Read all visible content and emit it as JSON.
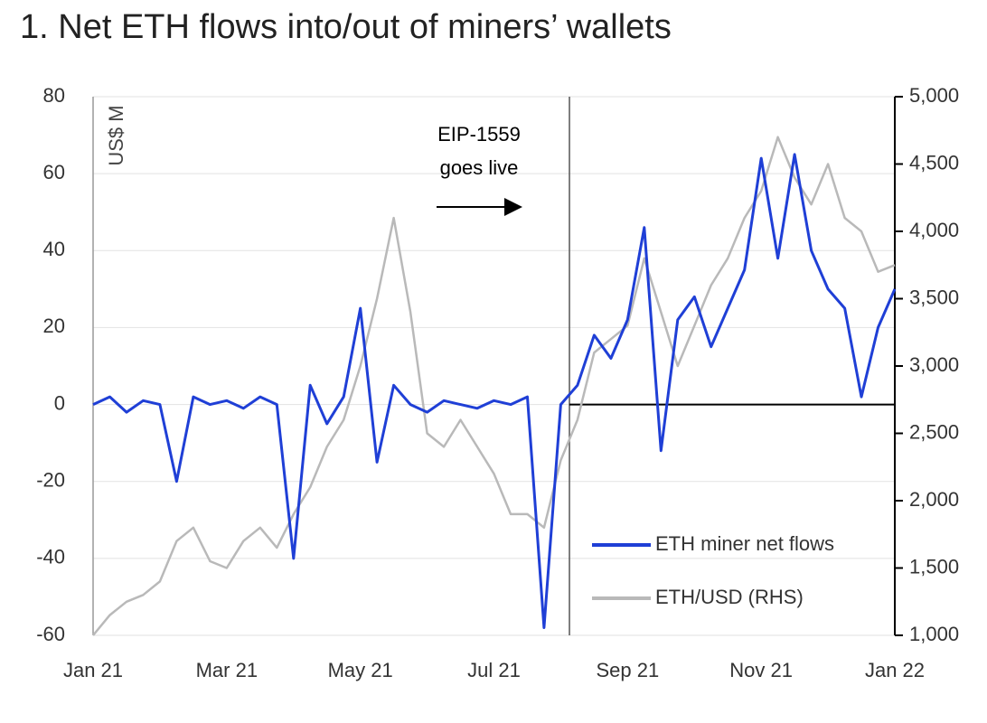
{
  "chart_data": {
    "type": "line",
    "title": "1. Net ETH flows into/out of miners’ wallets",
    "y_label": "US$ M",
    "annotation": {
      "lines": [
        "EIP-1559",
        "goes live"
      ],
      "x": 7.13
    },
    "x": [
      0,
      0.25,
      0.5,
      0.75,
      1,
      1.25,
      1.5,
      1.75,
      2,
      2.25,
      2.5,
      2.75,
      3,
      3.25,
      3.5,
      3.75,
      4,
      4.25,
      4.5,
      4.75,
      5,
      5.25,
      5.5,
      5.75,
      6,
      6.25,
      6.5,
      6.75,
      7,
      7.25,
      7.5,
      7.75,
      8,
      8.25,
      8.5,
      8.75,
      9,
      9.25,
      9.5,
      9.75,
      10,
      10.25,
      10.5,
      10.75,
      11,
      11.25,
      11.5,
      11.75,
      12
    ],
    "series": [
      {
        "name": "ETH/USD (RHS)",
        "color": "#b9b9b9",
        "axis": "y2",
        "values": [
          1000,
          1150,
          1250,
          1300,
          1400,
          1700,
          1800,
          1550,
          1500,
          1700,
          1800,
          1650,
          1900,
          2100,
          2400,
          2600,
          3000,
          3500,
          4100,
          3400,
          2500,
          2400,
          2600,
          2400,
          2200,
          1900,
          1900,
          1800,
          2300,
          2600,
          3100,
          3200,
          3300,
          3800,
          3400,
          3000,
          3300,
          3600,
          3800,
          4100,
          4300,
          4700,
          4400,
          4200,
          4500,
          4100,
          4000,
          3700,
          3750
        ]
      },
      {
        "name": "ETH miner net flows",
        "color": "#1f3fd6",
        "values": [
          0,
          2,
          -2,
          1,
          0,
          -20,
          2,
          0,
          1,
          -1,
          2,
          0,
          -40,
          5,
          -5,
          2,
          25,
          -15,
          5,
          0,
          -2,
          1,
          0,
          -1,
          1,
          0,
          2,
          -58,
          0,
          5,
          18,
          12,
          22,
          46,
          -12,
          22,
          28,
          15,
          25,
          35,
          64,
          38,
          65,
          40,
          30,
          25,
          2,
          20,
          30
        ]
      }
    ],
    "xlim": [
      0,
      12
    ],
    "xticks": [
      {
        "value": 0,
        "label": "Jan 21"
      },
      {
        "value": 2,
        "label": "Mar 21"
      },
      {
        "value": 4,
        "label": "May 21"
      },
      {
        "value": 6,
        "label": "Jul 21"
      },
      {
        "value": 8,
        "label": "Sep 21"
      },
      {
        "value": 10,
        "label": "Nov 21"
      },
      {
        "value": 12,
        "label": "Jan 22"
      }
    ],
    "ylim": [
      -60,
      80
    ],
    "yticks": [
      -60,
      -40,
      -20,
      0,
      20,
      40,
      60,
      80
    ],
    "y2lim": [
      1000,
      5000
    ],
    "y2ticks": [
      {
        "value": 1000,
        "label": "1,000"
      },
      {
        "value": 1500,
        "label": "1,500"
      },
      {
        "value": 2000,
        "label": "2,000"
      },
      {
        "value": 2500,
        "label": "2,500"
      },
      {
        "value": 3000,
        "label": "3,000"
      },
      {
        "value": 3500,
        "label": "3,500"
      },
      {
        "value": 4000,
        "label": "4,000"
      },
      {
        "value": 4500,
        "label": "4,500"
      },
      {
        "value": 5000,
        "label": "5,000"
      }
    ],
    "grid": true,
    "legend": "lower right"
  }
}
